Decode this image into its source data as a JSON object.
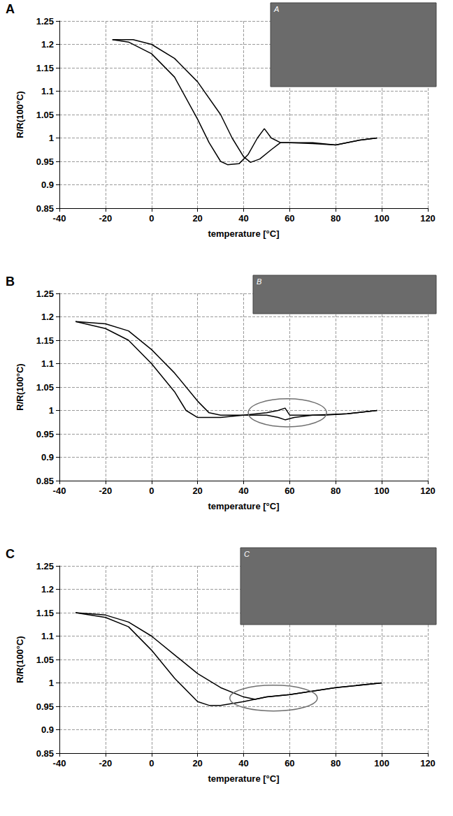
{
  "chart_data": [
    {
      "type": "line",
      "panel": "A",
      "x_label": "temperature [°C]",
      "y_label": "R/R(100°C)",
      "xlim": [
        -40,
        120
      ],
      "xticks": [
        -40,
        -20,
        0,
        20,
        40,
        60,
        80,
        100,
        120
      ],
      "ylim": [
        0.85,
        1.25
      ],
      "yticks": [
        0.85,
        0.9,
        0.95,
        1,
        1.05,
        1.1,
        1.15,
        1.2,
        1.25
      ],
      "grid": true,
      "series": [
        {
          "color": "#000000",
          "x": [
            -17,
            -10,
            0,
            10,
            20,
            25,
            30,
            33,
            38,
            42,
            46,
            49,
            52,
            56,
            60,
            70,
            80,
            90,
            98
          ],
          "values": [
            1.21,
            1.205,
            1.18,
            1.13,
            1.04,
            0.99,
            0.95,
            0.943,
            0.945,
            0.965,
            1.0,
            1.02,
            1.0,
            0.99,
            0.99,
            0.988,
            0.985,
            0.995,
            1.0
          ]
        },
        {
          "color": "#000000",
          "x": [
            -17,
            -8,
            0,
            10,
            20,
            30,
            35,
            40,
            43,
            47,
            52,
            56,
            62,
            70,
            80,
            90,
            98
          ],
          "values": [
            1.21,
            1.21,
            1.2,
            1.17,
            1.12,
            1.05,
            1.0,
            0.96,
            0.948,
            0.955,
            0.975,
            0.99,
            0.99,
            0.99,
            0.985,
            0.995,
            1.0
          ]
        }
      ]
    },
    {
      "type": "line",
      "panel": "B",
      "x_label": "temperature [°C]",
      "y_label": "R/R(100°C)",
      "xlim": [
        -40,
        120
      ],
      "xticks": [
        -40,
        -20,
        0,
        20,
        40,
        60,
        80,
        100,
        120
      ],
      "ylim": [
        0.85,
        1.25
      ],
      "yticks": [
        0.85,
        0.9,
        0.95,
        1,
        1.05,
        1.1,
        1.15,
        1.2,
        1.25
      ],
      "grid": true,
      "series": [
        {
          "color": "#000000",
          "x": [
            -33,
            -20,
            -10,
            0,
            10,
            15,
            20,
            30,
            40,
            50,
            55,
            58,
            60,
            65,
            75,
            85,
            98
          ],
          "values": [
            1.19,
            1.175,
            1.15,
            1.1,
            1.04,
            1.0,
            0.985,
            0.985,
            0.99,
            0.995,
            1.0,
            1.005,
            0.99,
            0.99,
            0.99,
            0.993,
            1.0
          ]
        },
        {
          "color": "#000000",
          "x": [
            -33,
            -20,
            -10,
            0,
            10,
            20,
            25,
            30,
            40,
            50,
            55,
            58,
            62,
            70,
            85,
            98
          ],
          "values": [
            1.19,
            1.185,
            1.17,
            1.13,
            1.08,
            1.02,
            0.995,
            0.99,
            0.99,
            0.99,
            0.985,
            0.98,
            0.985,
            0.99,
            0.993,
            1.0
          ]
        }
      ],
      "highlight": {
        "x": [
          42,
          76
        ],
        "y": [
          0.965,
          1.025
        ]
      }
    },
    {
      "type": "line",
      "panel": "C",
      "x_label": "temperature [°C]",
      "y_label": "R/R(100°C)",
      "xlim": [
        -40,
        120
      ],
      "xticks": [
        -40,
        -20,
        0,
        20,
        40,
        60,
        80,
        100,
        120
      ],
      "ylim": [
        0.85,
        1.25
      ],
      "yticks": [
        0.85,
        0.9,
        0.95,
        1,
        1.05,
        1.1,
        1.15,
        1.2,
        1.25
      ],
      "grid": true,
      "series": [
        {
          "color": "#000000",
          "x": [
            -33,
            -20,
            -10,
            0,
            10,
            20,
            25,
            30,
            40,
            50,
            60,
            80,
            100
          ],
          "values": [
            1.15,
            1.14,
            1.12,
            1.07,
            1.01,
            0.96,
            0.952,
            0.952,
            0.96,
            0.97,
            0.975,
            0.99,
            1.0
          ]
        },
        {
          "color": "#000000",
          "x": [
            -33,
            -20,
            -10,
            0,
            10,
            20,
            30,
            40,
            45,
            50,
            60,
            80,
            100
          ],
          "values": [
            1.15,
            1.145,
            1.13,
            1.1,
            1.06,
            1.02,
            0.99,
            0.97,
            0.965,
            0.97,
            0.975,
            0.99,
            1.0
          ]
        }
      ],
      "highlight": {
        "x": [
          34,
          72
        ],
        "y": [
          0.94,
          0.995
        ]
      }
    }
  ]
}
